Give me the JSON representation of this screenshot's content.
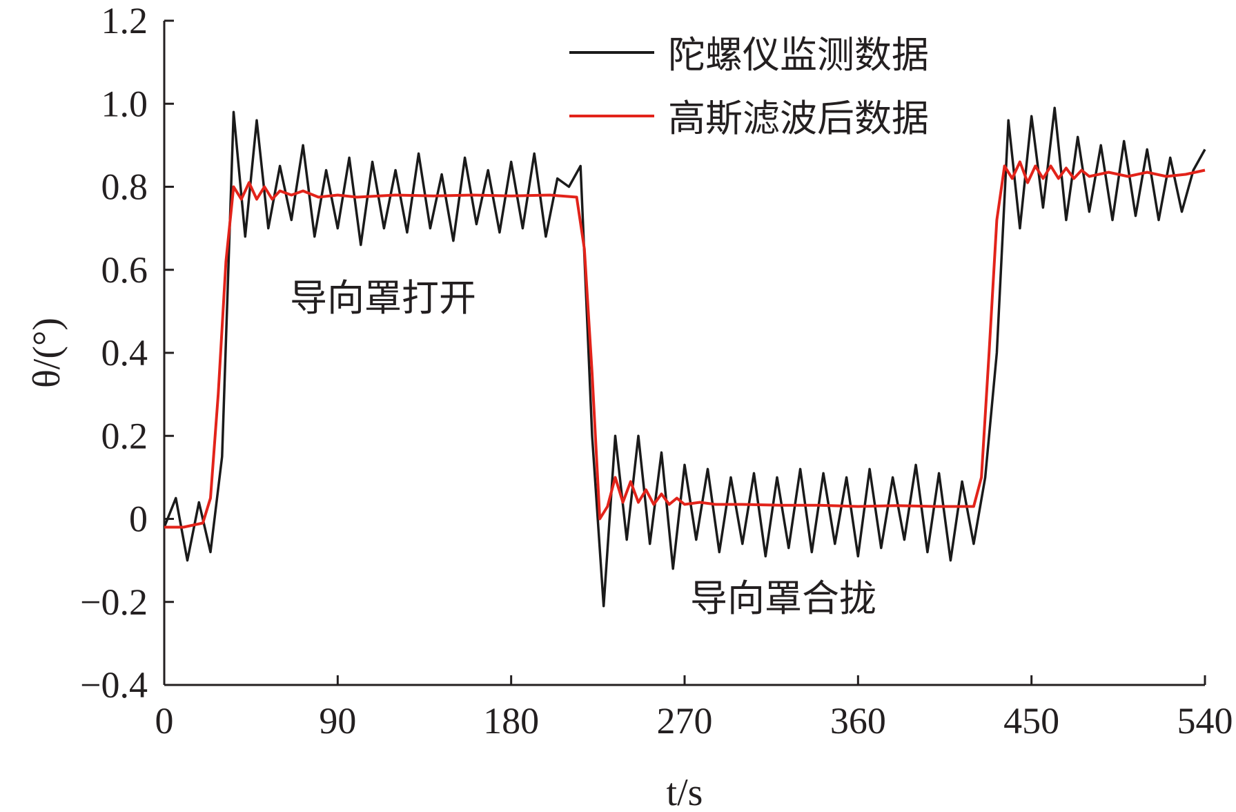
{
  "chart_data": {
    "type": "line",
    "xlabel": "t/s",
    "ylabel": "θ/(°)",
    "xlim": [
      0,
      540
    ],
    "ylim": [
      -0.4,
      1.2
    ],
    "x_ticks": [
      "0",
      "90",
      "180",
      "270",
      "360",
      "450",
      "540"
    ],
    "y_ticks": [
      "−0.4",
      "−0.2",
      "0",
      "0.2",
      "0.4",
      "0.6",
      "0.8",
      "1.0",
      "1.2"
    ],
    "grid": false,
    "legend_position": "top-right",
    "series": [
      {
        "name": "陀螺仪监测数据",
        "color": "#1a1a1a",
        "x": [
          0,
          6,
          12,
          18,
          24,
          30,
          36,
          42,
          48,
          54,
          60,
          66,
          72,
          78,
          84,
          90,
          96,
          102,
          108,
          114,
          120,
          126,
          132,
          138,
          144,
          150,
          156,
          162,
          168,
          174,
          180,
          186,
          192,
          198,
          204,
          210,
          216,
          222,
          228,
          234,
          240,
          246,
          252,
          258,
          264,
          270,
          276,
          282,
          288,
          294,
          300,
          306,
          312,
          318,
          324,
          330,
          336,
          342,
          348,
          354,
          360,
          366,
          372,
          378,
          384,
          390,
          396,
          402,
          408,
          414,
          420,
          426,
          432,
          438,
          444,
          450,
          456,
          462,
          468,
          474,
          480,
          486,
          492,
          498,
          504,
          510,
          516,
          522,
          528,
          534,
          540
        ],
        "y": [
          -0.02,
          0.05,
          -0.1,
          0.04,
          -0.08,
          0.15,
          0.98,
          0.68,
          0.96,
          0.7,
          0.85,
          0.72,
          0.9,
          0.68,
          0.84,
          0.7,
          0.87,
          0.66,
          0.86,
          0.7,
          0.84,
          0.69,
          0.88,
          0.7,
          0.83,
          0.67,
          0.87,
          0.71,
          0.84,
          0.69,
          0.86,
          0.7,
          0.88,
          0.68,
          0.82,
          0.8,
          0.85,
          0.2,
          -0.21,
          0.2,
          -0.05,
          0.2,
          -0.06,
          0.16,
          -0.12,
          0.13,
          -0.05,
          0.12,
          -0.08,
          0.1,
          -0.06,
          0.11,
          -0.09,
          0.1,
          -0.07,
          0.12,
          -0.08,
          0.11,
          -0.06,
          0.1,
          -0.09,
          0.12,
          -0.07,
          0.1,
          -0.05,
          0.13,
          -0.08,
          0.11,
          -0.1,
          0.09,
          -0.06,
          0.1,
          0.4,
          0.96,
          0.7,
          0.97,
          0.75,
          0.99,
          0.72,
          0.92,
          0.74,
          0.9,
          0.72,
          0.91,
          0.73,
          0.89,
          0.72,
          0.87,
          0.74,
          0.84,
          0.89
        ]
      },
      {
        "name": "高斯滤波后数据",
        "color": "#e2231a",
        "x": [
          0,
          10,
          20,
          24,
          28,
          32,
          36,
          40,
          44,
          48,
          52,
          56,
          60,
          66,
          72,
          80,
          90,
          100,
          120,
          140,
          160,
          180,
          200,
          214,
          218,
          222,
          226,
          230,
          234,
          238,
          242,
          246,
          250,
          254,
          258,
          262,
          266,
          270,
          278,
          286,
          300,
          320,
          340,
          360,
          380,
          400,
          420,
          424,
          428,
          432,
          436,
          440,
          444,
          448,
          452,
          456,
          460,
          464,
          468,
          472,
          476,
          480,
          490,
          500,
          510,
          520,
          530,
          540
        ],
        "y": [
          -0.02,
          -0.02,
          -0.01,
          0.05,
          0.3,
          0.62,
          0.8,
          0.77,
          0.81,
          0.77,
          0.8,
          0.77,
          0.79,
          0.78,
          0.79,
          0.775,
          0.78,
          0.775,
          0.78,
          0.778,
          0.78,
          0.778,
          0.78,
          0.775,
          0.65,
          0.35,
          0.0,
          0.03,
          0.1,
          0.04,
          0.09,
          0.04,
          0.07,
          0.035,
          0.06,
          0.035,
          0.05,
          0.035,
          0.04,
          0.035,
          0.035,
          0.033,
          0.033,
          0.03,
          0.032,
          0.03,
          0.03,
          0.1,
          0.4,
          0.72,
          0.85,
          0.82,
          0.86,
          0.81,
          0.85,
          0.82,
          0.85,
          0.82,
          0.845,
          0.82,
          0.84,
          0.825,
          0.835,
          0.825,
          0.835,
          0.825,
          0.83,
          0.84
        ]
      }
    ],
    "annotations": [
      "导向罩打开",
      "导向罩合拢"
    ]
  }
}
